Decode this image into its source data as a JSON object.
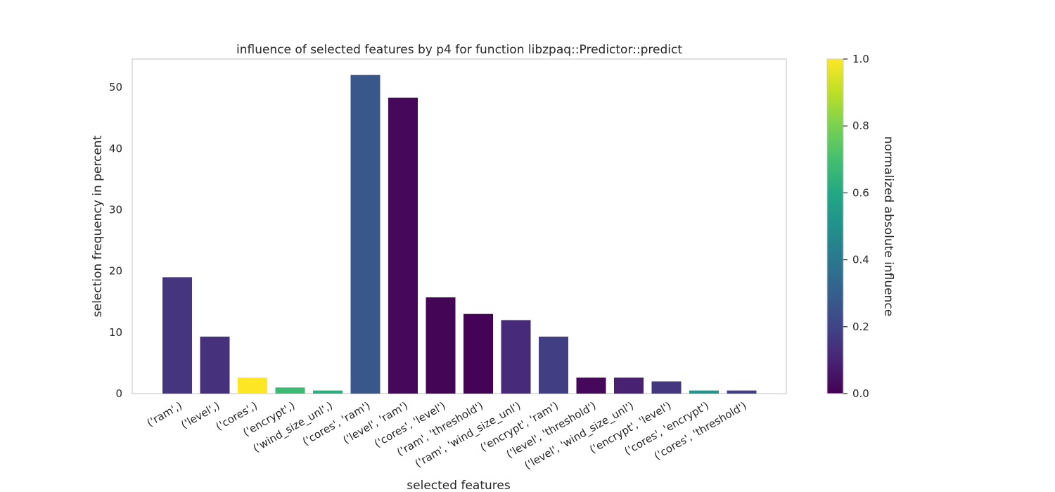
{
  "chart_data": {
    "type": "bar",
    "title": "influence of selected features by p4 for function libzpaq::Predictor::predict",
    "xlabel": "selected features",
    "ylabel": "selection frequency in percent",
    "ylim": [
      0,
      54.6
    ],
    "yticks": [
      0,
      10,
      20,
      30,
      40,
      50
    ],
    "grid": false,
    "categories": [
      "('ram',)",
      "('level',)",
      "('cores',)",
      "('encrypt',)",
      "('wind_size_unl',)",
      "('cores', 'ram')",
      "('level', 'ram')",
      "('cores', 'level')",
      "('ram', 'threshold')",
      "('ram', 'wind_size_unl')",
      "('encrypt', 'ram')",
      "('level', 'threshold')",
      "('level', 'wind_size_unl')",
      "('encrypt', 'level')",
      "('cores', 'encrypt')",
      "('cores', 'threshold')"
    ],
    "values": [
      19.0,
      9.3,
      2.6,
      1.0,
      0.5,
      52.0,
      48.3,
      15.7,
      13.0,
      12.0,
      9.3,
      2.6,
      2.6,
      2.0,
      0.5,
      0.5
    ],
    "influence": [
      0.15,
      0.14,
      1.0,
      0.68,
      0.63,
      0.27,
      0.02,
      0.01,
      0.005,
      0.12,
      0.18,
      0.02,
      0.09,
      0.16,
      0.52,
      0.18
    ],
    "colorbar": {
      "label": "normalized absolute influence",
      "range": [
        0.0,
        1.0
      ],
      "ticks": [
        "0.0",
        "0.2",
        "0.4",
        "0.6",
        "0.8",
        "1.0"
      ],
      "colormap": "viridis"
    }
  }
}
